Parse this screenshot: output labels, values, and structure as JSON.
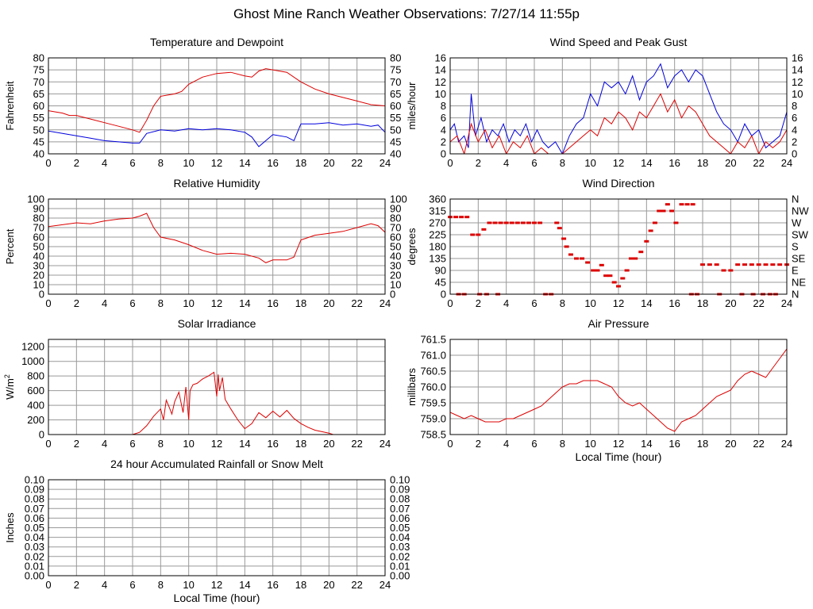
{
  "page": {
    "title": "Ghost Mine Ranch Weather Observations: 7/27/14 11:55p"
  },
  "colors": {
    "red": "#dd0000",
    "blue": "#0000dd",
    "grid": "#999999",
    "axis": "#000000"
  },
  "chart_data": [
    {
      "id": "temp",
      "type": "line",
      "title": "Temperature and Dewpoint",
      "xlabel": "",
      "ylabel": "Fahrenheit",
      "xlim": [
        0,
        24
      ],
      "ylim": [
        40,
        80
      ],
      "xticks": [
        0,
        2,
        4,
        6,
        8,
        10,
        12,
        14,
        16,
        18,
        20,
        22,
        24
      ],
      "yticks": [
        40,
        45,
        50,
        55,
        60,
        65,
        70,
        75,
        80
      ],
      "right_ticks": [
        "40",
        "45",
        "50",
        "55",
        "60",
        "65",
        "70",
        "75",
        "80"
      ],
      "series": [
        {
          "color": "#dd0000",
          "x": [
            0,
            0.5,
            1,
            1.5,
            2,
            3,
            4,
            5,
            6,
            6.5,
            7,
            7.5,
            8,
            8.5,
            9,
            9.5,
            10,
            11,
            12,
            13,
            14,
            14.5,
            15,
            15.5,
            16,
            17,
            18,
            19,
            20,
            21,
            22,
            23,
            24
          ],
          "y": [
            58,
            57.5,
            57,
            56,
            56,
            54.5,
            53,
            51.5,
            50,
            49,
            54,
            60,
            64,
            64.5,
            65,
            66,
            69,
            72,
            73.5,
            74,
            72.5,
            72,
            74.5,
            75.5,
            75,
            74,
            70,
            67,
            65,
            63.5,
            62,
            60.5,
            60
          ]
        },
        {
          "color": "#0000dd",
          "x": [
            0,
            1,
            2,
            3,
            4,
            5,
            6,
            6.5,
            7,
            8,
            9,
            10,
            11,
            12,
            13,
            14,
            14.5,
            15,
            15.5,
            16,
            17,
            17.5,
            18,
            19,
            20,
            21,
            22,
            23,
            23.5,
            24
          ],
          "y": [
            49.5,
            48.5,
            47.5,
            46.5,
            45.5,
            45,
            44.5,
            44.5,
            48.5,
            50,
            49.5,
            50.5,
            50,
            50.5,
            50,
            49,
            47,
            43,
            45.5,
            48,
            47,
            45.5,
            52.5,
            52.5,
            53,
            52,
            52.5,
            51.5,
            52,
            49
          ]
        }
      ]
    },
    {
      "id": "wind",
      "type": "line",
      "title": "Wind Speed and Peak Gust",
      "xlabel": "",
      "ylabel": "miles/hour",
      "xlim": [
        0,
        24
      ],
      "ylim": [
        0,
        16
      ],
      "xticks": [
        0,
        2,
        4,
        6,
        8,
        10,
        12,
        14,
        16,
        18,
        20,
        22,
        24
      ],
      "yticks": [
        0,
        2,
        4,
        6,
        8,
        10,
        12,
        14,
        16
      ],
      "right_ticks": [
        "0",
        "2",
        "4",
        "6",
        "8",
        "10",
        "12",
        "14",
        "16"
      ],
      "series": [
        {
          "color": "#0000dd",
          "x": [
            0,
            0.3,
            0.6,
            1,
            1.3,
            1.5,
            1.8,
            2.2,
            2.6,
            3,
            3.4,
            3.8,
            4.2,
            4.6,
            5,
            5.4,
            5.8,
            6.2,
            6.6,
            7,
            7.5,
            8,
            8.5,
            9,
            9.5,
            10,
            10.5,
            11,
            11.5,
            12,
            12.5,
            13,
            13.5,
            14,
            14.5,
            15,
            15.5,
            16,
            16.5,
            17,
            17.5,
            18,
            18.5,
            19,
            19.5,
            20,
            20.5,
            21,
            21.5,
            22,
            22.5,
            23,
            23.5,
            24
          ],
          "y": [
            4,
            5,
            2,
            3,
            1,
            10,
            3,
            6,
            2,
            4,
            3,
            5,
            2,
            4,
            3,
            5,
            2,
            4,
            2,
            1,
            2,
            0,
            3,
            5,
            6,
            10,
            8,
            12,
            11,
            12,
            10,
            13,
            9,
            12,
            13,
            15,
            11,
            13,
            14,
            12,
            14,
            13,
            10,
            7,
            5,
            4,
            2,
            5,
            3,
            4,
            1,
            2,
            3,
            7
          ]
        },
        {
          "color": "#dd0000",
          "x": [
            0,
            0.5,
            1,
            1.5,
            2,
            2.5,
            3,
            3.5,
            4,
            4.5,
            5,
            5.5,
            6,
            6.5,
            7,
            7.5,
            8,
            8.5,
            9,
            9.5,
            10,
            10.5,
            11,
            11.5,
            12,
            12.5,
            13,
            13.5,
            14,
            14.5,
            15,
            15.5,
            16,
            16.5,
            17,
            17.5,
            18,
            18.5,
            19,
            19.5,
            20,
            20.5,
            21,
            21.5,
            22,
            22.5,
            23,
            23.5,
            24
          ],
          "y": [
            2,
            3,
            0,
            5,
            2,
            4,
            1,
            3,
            0,
            2,
            1,
            3,
            0,
            1,
            0,
            0,
            0,
            1,
            2,
            3,
            4,
            3,
            6,
            5,
            7,
            6,
            4,
            7,
            6,
            8,
            10,
            7,
            9,
            6,
            8,
            7,
            5,
            3,
            2,
            1,
            0,
            2,
            1,
            3,
            0,
            2,
            1,
            2,
            4
          ]
        }
      ]
    },
    {
      "id": "rh",
      "type": "line",
      "title": "Relative Humidity",
      "xlabel": "",
      "ylabel": "Percent",
      "xlim": [
        0,
        24
      ],
      "ylim": [
        0,
        100
      ],
      "xticks": [
        0,
        2,
        4,
        6,
        8,
        10,
        12,
        14,
        16,
        18,
        20,
        22,
        24
      ],
      "yticks": [
        0,
        10,
        20,
        30,
        40,
        50,
        60,
        70,
        80,
        90,
        100
      ],
      "right_ticks": [
        "0",
        "10",
        "20",
        "30",
        "40",
        "50",
        "60",
        "70",
        "80",
        "90",
        "100"
      ],
      "series": [
        {
          "color": "#dd0000",
          "x": [
            0,
            1,
            2,
            3,
            4,
            5,
            6,
            6.5,
            7,
            7.5,
            8,
            9,
            10,
            11,
            12,
            13,
            14,
            15,
            15.5,
            16,
            17,
            17.5,
            18,
            19,
            20,
            21,
            22,
            23,
            23.5,
            24
          ],
          "y": [
            71,
            73,
            75,
            74,
            77,
            79,
            80,
            82,
            85,
            70,
            60,
            57,
            52,
            46,
            42,
            43,
            42,
            38,
            33,
            36,
            36,
            39,
            57,
            62,
            64,
            66,
            70,
            74,
            72,
            65
          ]
        }
      ]
    },
    {
      "id": "winddir",
      "type": "scatter",
      "title": "Wind Direction",
      "xlabel": "",
      "ylabel": "degrees",
      "xlim": [
        0,
        24
      ],
      "ylim": [
        0,
        360
      ],
      "xticks": [
        0,
        2,
        4,
        6,
        8,
        10,
        12,
        14,
        16,
        18,
        20,
        22,
        24
      ],
      "yticks": [
        0,
        45,
        90,
        135,
        180,
        225,
        270,
        315,
        360
      ],
      "right_ticks": [
        "N",
        "NE",
        "E",
        "SE",
        "S",
        "SW",
        "W",
        "NW",
        "N"
      ],
      "series": [
        {
          "color": "#dd0000",
          "x": [
            0,
            0.4,
            0.8,
            1.2,
            1.6,
            2.0,
            2.4,
            2.8,
            3.2,
            3.6,
            4.0,
            4.4,
            4.8,
            5.2,
            5.6,
            6.0,
            6.4,
            7.6,
            7.8,
            8.1,
            8.3,
            8.6,
            9.0,
            9.4,
            9.8,
            10.2,
            10.5,
            10.8,
            11.1,
            11.4,
            11.7,
            12.0,
            12.3,
            12.6,
            12.9,
            13.2,
            13.6,
            14.0,
            14.3,
            14.6,
            14.9,
            15.2,
            15.5,
            15.8,
            16.1,
            16.5,
            16.9,
            17.3,
            17.6,
            18.0,
            18.5,
            19.0,
            19.5,
            20.0,
            20.5,
            21.0,
            21.5,
            22.0,
            22.5,
            23.0,
            23.5,
            24.0,
            0.6,
            1.0,
            2.1,
            2.6,
            3.4,
            6.8,
            7.2,
            17.2,
            19.2,
            20.8,
            21.6,
            22.3,
            22.8,
            23.2
          ],
          "y": [
            292,
            292,
            292,
            292,
            225,
            225,
            245,
            270,
            270,
            270,
            270,
            270,
            270,
            270,
            270,
            270,
            270,
            270,
            250,
            210,
            180,
            150,
            135,
            135,
            120,
            90,
            90,
            110,
            70,
            70,
            45,
            30,
            60,
            90,
            135,
            135,
            160,
            200,
            240,
            270,
            315,
            315,
            340,
            315,
            270,
            340,
            340,
            340,
            0,
            112,
            112,
            112,
            90,
            90,
            112,
            112,
            112,
            112,
            112,
            112,
            112,
            112,
            0,
            0,
            0,
            0,
            0,
            0,
            0,
            0,
            0,
            0,
            0,
            0,
            0,
            0
          ]
        }
      ]
    },
    {
      "id": "solar",
      "type": "line",
      "title": "Solar Irradiance",
      "xlabel": "",
      "ylabel": "W/m",
      "ylabel_sup": "2",
      "xlim": [
        0,
        24
      ],
      "ylim": [
        0,
        1300
      ],
      "xticks": [
        0,
        2,
        4,
        6,
        8,
        10,
        12,
        14,
        16,
        18,
        20,
        22,
        24
      ],
      "yticks": [
        0,
        200,
        400,
        600,
        800,
        1000,
        1200
      ],
      "right_ticks": [],
      "series": [
        {
          "color": "#dd0000",
          "x": [
            0,
            6,
            6.5,
            7,
            7.5,
            8,
            8.2,
            8.4,
            8.6,
            8.8,
            9,
            9.3,
            9.6,
            9.8,
            10,
            10.1,
            10.3,
            10.6,
            11,
            11.4,
            11.8,
            12,
            12.1,
            12.2,
            12.4,
            12.6,
            13,
            13.5,
            14,
            14.5,
            15,
            15.5,
            16,
            16.5,
            17,
            17.5,
            18,
            18.5,
            19,
            20,
            20.3,
            24
          ],
          "y": [
            0,
            0,
            30,
            120,
            250,
            350,
            200,
            470,
            380,
            280,
            450,
            580,
            300,
            650,
            200,
            600,
            680,
            700,
            760,
            800,
            850,
            520,
            820,
            600,
            780,
            480,
            350,
            200,
            80,
            150,
            300,
            230,
            320,
            240,
            330,
            220,
            150,
            100,
            60,
            20,
            0,
            0
          ]
        }
      ]
    },
    {
      "id": "pressure",
      "type": "line",
      "title": "Air Pressure",
      "xlabel": "Local Time (hour)",
      "ylabel": "millibars",
      "xlim": [
        0,
        24
      ],
      "ylim": [
        758.5,
        761.5
      ],
      "xticks": [
        0,
        2,
        4,
        6,
        8,
        10,
        12,
        14,
        16,
        18,
        20,
        22,
        24
      ],
      "yticks": [
        758.5,
        759.0,
        759.5,
        760.0,
        760.5,
        761.0,
        761.5
      ],
      "ytick_labels": [
        "758.5",
        "759.0",
        "759.5",
        "760.0",
        "760.5",
        "761.0",
        "761.5"
      ],
      "right_ticks": [],
      "series": [
        {
          "color": "#dd0000",
          "x": [
            0,
            0.5,
            1,
            1.5,
            2,
            2.5,
            3,
            3.5,
            4,
            4.5,
            5,
            5.5,
            6,
            6.5,
            7,
            7.5,
            8,
            8.5,
            9,
            9.5,
            10,
            10.5,
            11,
            11.5,
            12,
            12.5,
            13,
            13.5,
            14,
            14.5,
            15,
            15.5,
            16,
            16.5,
            17,
            17.5,
            18,
            18.5,
            19,
            19.5,
            20,
            20.5,
            21,
            21.5,
            22,
            22.5,
            23,
            23.5,
            24
          ],
          "y": [
            759.2,
            759.1,
            759.0,
            759.1,
            759.0,
            758.9,
            758.9,
            758.9,
            759.0,
            759.0,
            759.1,
            759.2,
            759.3,
            759.4,
            759.6,
            759.8,
            760.0,
            760.1,
            760.1,
            760.2,
            760.2,
            760.2,
            760.1,
            760.0,
            759.7,
            759.5,
            759.4,
            759.5,
            759.3,
            759.1,
            758.9,
            758.7,
            758.6,
            758.9,
            759.0,
            759.1,
            759.3,
            759.5,
            759.7,
            759.8,
            759.9,
            760.2,
            760.4,
            760.5,
            760.4,
            760.3,
            760.6,
            760.9,
            761.2
          ]
        }
      ]
    },
    {
      "id": "rain",
      "type": "line",
      "title": "24 hour Accumulated Rainfall or Snow Melt",
      "xlabel": "Local Time (hour)",
      "ylabel": "Inches",
      "xlim": [
        0,
        24
      ],
      "ylim": [
        0,
        0.1
      ],
      "xticks": [
        0,
        2,
        4,
        6,
        8,
        10,
        12,
        14,
        16,
        18,
        20,
        22,
        24
      ],
      "yticks": [
        0,
        0.01,
        0.02,
        0.03,
        0.04,
        0.05,
        0.06,
        0.07,
        0.08,
        0.09,
        0.1
      ],
      "ytick_labels": [
        "0.00",
        "0.01",
        "0.02",
        "0.03",
        "0.04",
        "0.05",
        "0.06",
        "0.07",
        "0.08",
        "0.09",
        "0.10"
      ],
      "right_ticks": [
        "0.00",
        "0.01",
        "0.02",
        "0.03",
        "0.04",
        "0.05",
        "0.06",
        "0.07",
        "0.08",
        "0.09",
        "0.10"
      ],
      "series": [
        {
          "color": "#dd0000",
          "x": [
            0,
            24
          ],
          "y": [
            0,
            0
          ]
        }
      ]
    }
  ]
}
